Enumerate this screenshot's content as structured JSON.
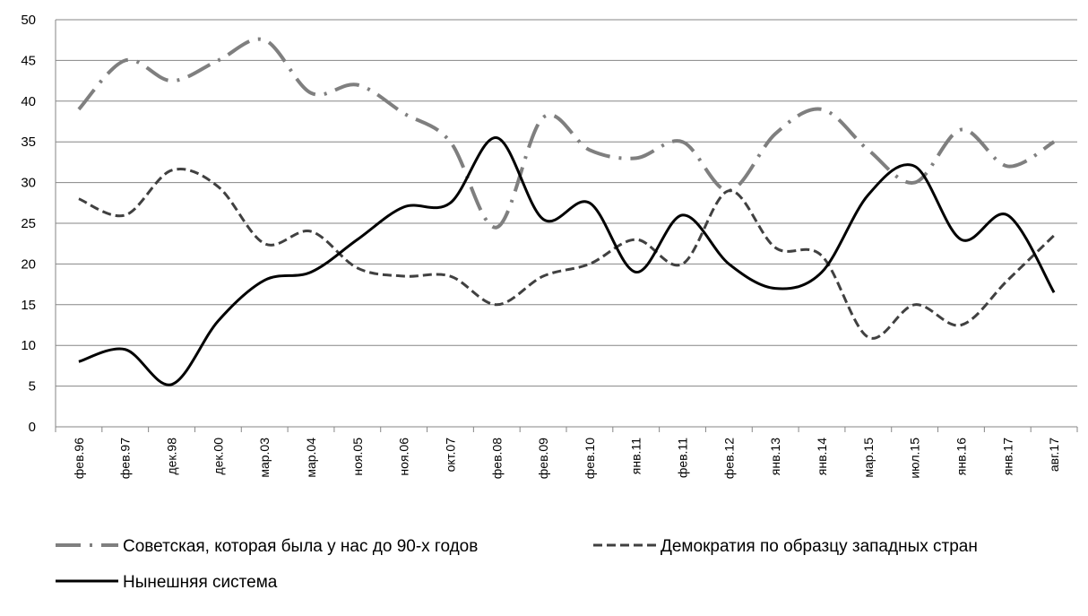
{
  "chart_data": {
    "type": "line",
    "categories": [
      "фев.96",
      "фев.97",
      "дек.98",
      "дек.00",
      "мар.03",
      "мар.04",
      "ноя.05",
      "ноя.06",
      "окт.07",
      "фев.08",
      "фев.09",
      "фев.10",
      "янв.11",
      "фев.11",
      "фев.12",
      "янв.13",
      "янв.14",
      "мар.15",
      "июл.15",
      "янв.16",
      "янв.17",
      "авг.17"
    ],
    "series": [
      {
        "name": "Советская, которая была у нас до 90-х годов",
        "color": "#7f7f7f",
        "dash": "dash-dot",
        "values": [
          39,
          45,
          42.5,
          45,
          47.5,
          41,
          42,
          38.5,
          35,
          24.5,
          38,
          34,
          33,
          35,
          29,
          36,
          39,
          34,
          30,
          36.5,
          32,
          35
        ]
      },
      {
        "name": "Демократия по образцу западных стран",
        "color": "#404040",
        "dash": "dash",
        "values": [
          28,
          26,
          31.5,
          29.5,
          22.5,
          24,
          19.5,
          18.5,
          18.5,
          15,
          18.5,
          20,
          23,
          20,
          29,
          22,
          21,
          11,
          15,
          12.5,
          18,
          23.5
        ]
      },
      {
        "name": "Нынешняя система",
        "color": "#000000",
        "dash": "solid",
        "values": [
          8,
          9.5,
          5.2,
          13,
          18,
          19,
          23,
          27,
          27.5,
          35.5,
          25.5,
          27.5,
          19,
          26,
          20,
          17,
          19,
          28.5,
          32,
          23,
          26,
          16.5
        ]
      }
    ],
    "ylim": [
      0,
      50
    ],
    "yticks": [
      0,
      5,
      10,
      15,
      20,
      25,
      30,
      35,
      40,
      45,
      50
    ],
    "grid": true,
    "legend": "bottom",
    "smooth": true
  }
}
